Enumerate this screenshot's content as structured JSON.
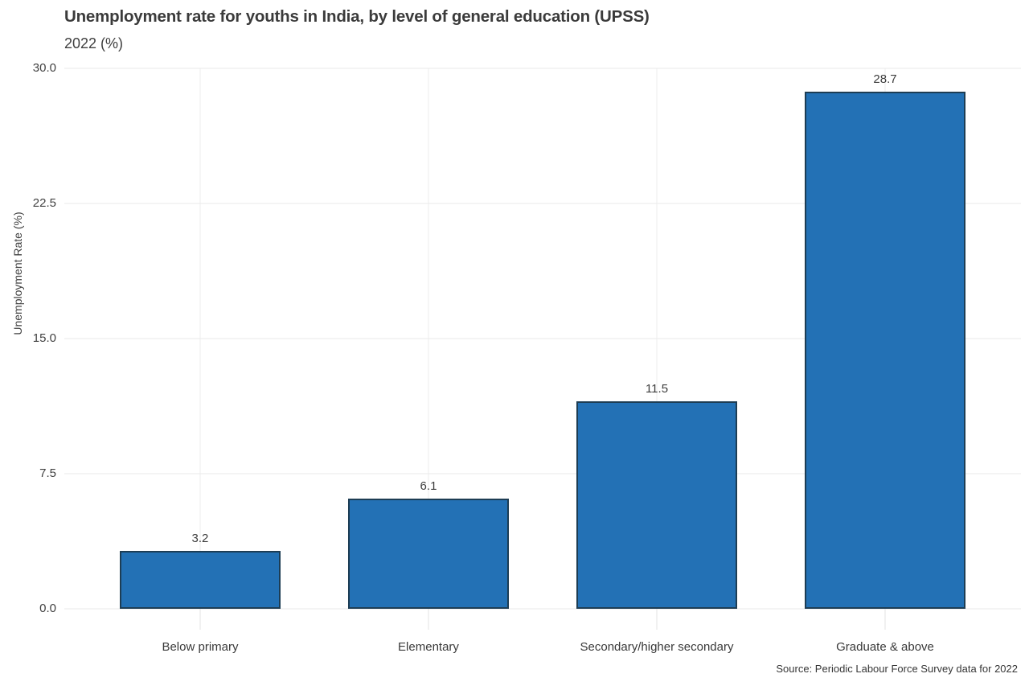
{
  "chart_data": {
    "type": "bar",
    "title": "Unemployment rate for youths in India, by level of general education (UPSS)",
    "subtitle": "2022 (%)",
    "categories": [
      "Below primary",
      "Elementary",
      "Secondary/higher secondary",
      "Graduate & above"
    ],
    "values": [
      3.2,
      6.1,
      11.5,
      28.7
    ],
    "value_labels": [
      "3.2",
      "6.1",
      "11.5",
      "28.7"
    ],
    "xlabel": "",
    "ylabel": "Unemployment Rate (%)",
    "ylim": [
      0,
      30
    ],
    "yticks": [
      0,
      7.5,
      15,
      22.5,
      30
    ],
    "ytick_labels": [
      "0.0",
      "7.5",
      "15.0",
      "22.5",
      "30.0"
    ],
    "grid": true,
    "legend": "none",
    "colors": {
      "bar_fill": "#2371b5",
      "bar_border": "#1d3d54",
      "grid_line": "#e8e8e8",
      "tick_line": "#e3e3e3",
      "text": "#3c3c3c"
    },
    "source": "Source: Periodic Labour Force Survey data for 2022"
  }
}
